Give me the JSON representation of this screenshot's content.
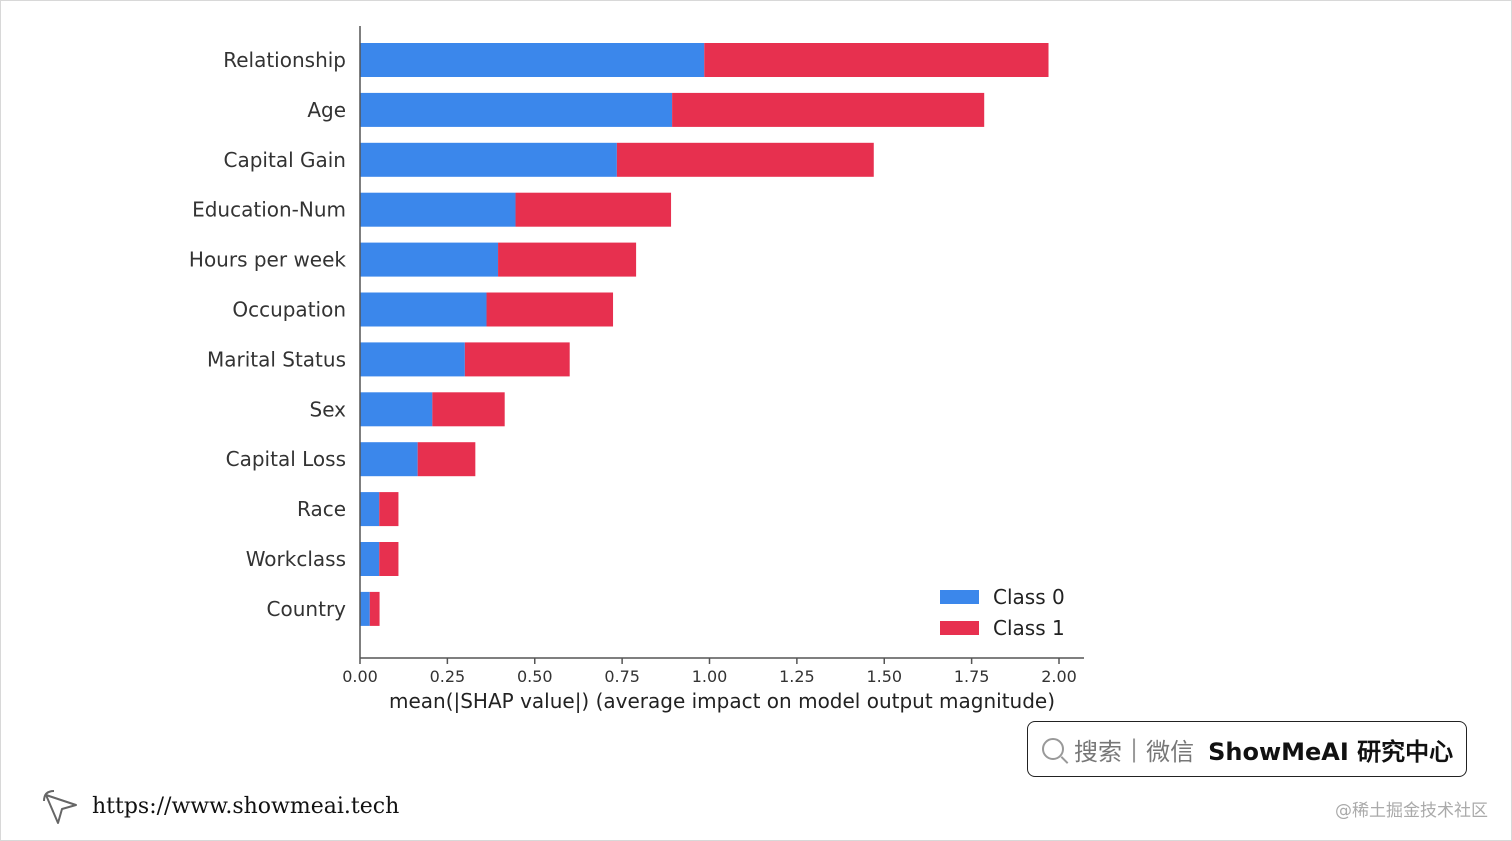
{
  "chart_data": {
    "type": "bar",
    "orientation": "horizontal",
    "stacked": true,
    "categories": [
      "Relationship",
      "Age",
      "Capital Gain",
      "Education-Num",
      "Hours per week",
      "Occupation",
      "Marital Status",
      "Sex",
      "Capital Loss",
      "Race",
      "Workclass",
      "Country"
    ],
    "series": [
      {
        "name": "Class 0",
        "color": "#3b87eb",
        "values": [
          0.985,
          0.893,
          0.735,
          0.445,
          0.395,
          0.362,
          0.3,
          0.207,
          0.165,
          0.055,
          0.055,
          0.028
        ]
      },
      {
        "name": "Class 1",
        "color": "#e7304f",
        "values": [
          0.985,
          0.893,
          0.735,
          0.445,
          0.395,
          0.362,
          0.3,
          0.207,
          0.165,
          0.055,
          0.055,
          0.028
        ]
      }
    ],
    "xlabel": "mean(|SHAP value|) (average impact on model output magnitude)",
    "xticks": [
      "0.00",
      "0.25",
      "0.50",
      "0.75",
      "1.00",
      "1.25",
      "1.50",
      "1.75",
      "2.00"
    ],
    "xlim": [
      0,
      2.0
    ],
    "legend_position": "bottom-right",
    "grid": false
  },
  "search": {
    "icon": "search-icon",
    "label": "搜索",
    "separator": "|",
    "channel": "微信",
    "brand": "ShowMeAI 研究中心"
  },
  "footer": {
    "icon": "cursor-icon",
    "url": "https://www.showmeai.tech"
  },
  "watermark": "@稀土掘金技术社区"
}
